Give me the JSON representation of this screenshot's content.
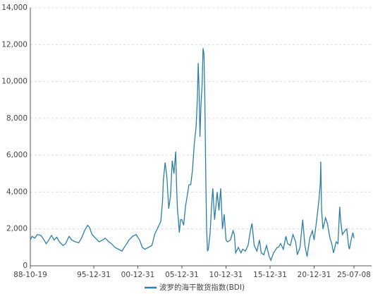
{
  "chart_data": {
    "type": "line",
    "x": [
      1988.8,
      1989.0,
      1989.3,
      1989.6,
      1990.0,
      1990.3,
      1990.6,
      1990.9,
      1991.2,
      1991.5,
      1991.8,
      1992.1,
      1992.5,
      1992.8,
      1993.2,
      1993.5,
      1993.9,
      1994.3,
      1994.6,
      1995.0,
      1995.3,
      1995.5,
      1995.8,
      1996.2,
      1996.6,
      1997.0,
      1997.3,
      1997.7,
      1998.0,
      1998.4,
      1998.8,
      1999.2,
      1999.6,
      2000.0,
      2000.4,
      2000.8,
      2001.2,
      2001.5,
      2001.8,
      2002.2,
      2002.6,
      2002.9,
      2003.3,
      2003.6,
      2003.8,
      2003.9,
      2004.1,
      2004.3,
      2004.5,
      2004.7,
      2004.9,
      2005.1,
      2005.3,
      2005.4,
      2005.5,
      2005.6,
      2005.7,
      2005.85,
      2006.0,
      2006.2,
      2006.4,
      2006.6,
      2006.8,
      2007.0,
      2007.2,
      2007.4,
      2007.6,
      2007.75,
      2007.85,
      2007.95,
      2008.05,
      2008.15,
      2008.3,
      2008.4,
      2008.5,
      2008.6,
      2008.7,
      2008.8,
      2008.9,
      2009.0,
      2009.2,
      2009.4,
      2009.5,
      2009.7,
      2009.85,
      2010.0,
      2010.2,
      2010.4,
      2010.6,
      2010.8,
      2011.0,
      2011.2,
      2011.5,
      2011.8,
      2011.95,
      2012.1,
      2012.4,
      2012.7,
      2012.9,
      2013.2,
      2013.5,
      2013.8,
      2013.95,
      2014.2,
      2014.5,
      2014.8,
      2015.0,
      2015.3,
      2015.6,
      2015.9,
      2016.1,
      2016.4,
      2016.8,
      2016.95,
      2017.2,
      2017.5,
      2017.8,
      2018.0,
      2018.3,
      2018.6,
      2018.9,
      2019.1,
      2019.4,
      2019.7,
      2019.95,
      2020.2,
      2020.5,
      2020.8,
      2021.0,
      2021.3,
      2021.55,
      2021.7,
      2021.75,
      2021.85,
      2022.0,
      2022.3,
      2022.5,
      2022.8,
      2023.0,
      2023.2,
      2023.5,
      2023.7,
      2023.9,
      2024.0,
      2024.2,
      2024.5,
      2024.7,
      2024.9,
      2025.0,
      2025.2,
      2025.4,
      2025.52
    ],
    "series": [
      {
        "name": "波罗的海干散货指数(BDI)",
        "color": "#2a7ea8",
        "values": [
          1400,
          1600,
          1500,
          1700,
          1650,
          1450,
          1200,
          1400,
          1650,
          1400,
          1550,
          1300,
          1100,
          1200,
          1600,
          1400,
          1300,
          1250,
          1500,
          1950,
          2200,
          2100,
          1700,
          1500,
          1300,
          1400,
          1500,
          1300,
          1200,
          1000,
          900,
          800,
          1100,
          1400,
          1600,
          1700,
          1400,
          1000,
          900,
          1000,
          1100,
          1700,
          2100,
          2400,
          3500,
          4700,
          5600,
          4800,
          3100,
          3800,
          5700,
          5000,
          6200,
          4200,
          3000,
          2500,
          1800,
          2500,
          2500,
          2200,
          3200,
          3800,
          4400,
          4400,
          5200,
          6600,
          7500,
          9000,
          11000,
          9500,
          7000,
          8600,
          9900,
          11800,
          11500,
          9000,
          5000,
          2000,
          800,
          900,
          1800,
          3500,
          4200,
          2500,
          3200,
          4000,
          3000,
          4200,
          2000,
          2800,
          1400,
          1300,
          1400,
          1900,
          1700,
          700,
          1000,
          700,
          900,
          800,
          1100,
          2000,
          2300,
          1100,
          800,
          1400,
          700,
          600,
          1100,
          500,
          300,
          700,
          1000,
          1000,
          1200,
          900,
          1600,
          1200,
          1100,
          1700,
          1300,
          600,
          1000,
          2500,
          1100,
          500,
          1500,
          1900,
          1400,
          2500,
          3600,
          4500,
          5650,
          3000,
          2000,
          2600,
          2300,
          1500,
          1200,
          700,
          1300,
          1200,
          3200,
          2500,
          1700,
          1900,
          2000,
          1100,
          900,
          1400,
          1800,
          1500
        ]
      }
    ],
    "xlim": [
      1988.8,
      2025.52
    ],
    "xticks": [
      {
        "value": 1988.8,
        "label": "88-10-19"
      },
      {
        "value": 1996.0,
        "label": "95-12-31"
      },
      {
        "value": 2001.0,
        "label": "00-12-31"
      },
      {
        "value": 2006.0,
        "label": "05-12-31"
      },
      {
        "value": 2011.0,
        "label": "10-12-31"
      },
      {
        "value": 2016.0,
        "label": "15-12-31"
      },
      {
        "value": 2021.0,
        "label": "20-12-31"
      },
      {
        "value": 2025.52,
        "label": "25-07-08"
      }
    ],
    "ylim": [
      0,
      14000
    ],
    "yticks": [
      0,
      {
        "value": 2000,
        "label": "2,000"
      },
      {
        "value": 4000,
        "label": "4,000"
      },
      {
        "value": 6000,
        "label": "6,000"
      },
      {
        "value": 8000,
        "label": "8,000"
      },
      {
        "value": 10000,
        "label": "10,000"
      },
      {
        "value": 12000,
        "label": "12,000"
      },
      {
        "value": 14000,
        "label": "14,000"
      }
    ],
    "grid": true,
    "legend": "bottom"
  }
}
